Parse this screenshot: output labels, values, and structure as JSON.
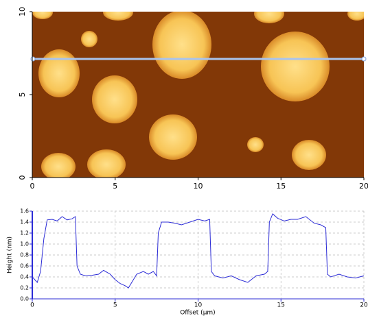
{
  "chart_data": [
    {
      "type": "image",
      "xlim": [
        0,
        20
      ],
      "ylim": [
        0,
        10
      ],
      "xticks": [
        0,
        5,
        10,
        15,
        20
      ],
      "yticks": [
        0,
        5,
        10
      ]
    },
    {
      "type": "line",
      "xlabel": "Offset (µm)",
      "ylabel": "Height (nm)",
      "x": [
        0,
        0.3,
        0.5,
        0.7,
        0.9,
        1.2,
        1.5,
        1.8,
        2.1,
        2.4,
        2.6,
        2.7,
        2.9,
        3.2,
        3.6,
        4.0,
        4.3,
        4.7,
        5.0,
        5.3,
        5.6,
        5.8,
        6.0,
        6.3,
        6.7,
        7.0,
        7.3,
        7.5,
        7.6,
        7.8,
        8.2,
        8.6,
        9.0,
        9.5,
        10.0,
        10.4,
        10.7,
        10.8,
        11.0,
        11.5,
        12.0,
        12.5,
        13.0,
        13.5,
        14.0,
        14.2,
        14.3,
        14.5,
        14.8,
        15.2,
        15.6,
        16.0,
        16.5,
        17.0,
        17.4,
        17.7,
        17.8,
        18.0,
        18.5,
        19.0,
        19.5,
        20.0
      ],
      "series": [
        {
          "color": "#2b2bd6",
          "values": [
            0.4,
            0.3,
            0.5,
            1.1,
            1.44,
            1.45,
            1.42,
            1.5,
            1.44,
            1.46,
            1.5,
            0.6,
            0.45,
            0.42,
            0.43,
            0.45,
            0.52,
            0.45,
            0.35,
            0.28,
            0.24,
            0.2,
            0.3,
            0.45,
            0.5,
            0.45,
            0.5,
            0.42,
            1.2,
            1.4,
            1.4,
            1.38,
            1.35,
            1.4,
            1.45,
            1.42,
            1.45,
            0.5,
            0.42,
            0.38,
            0.42,
            0.35,
            0.3,
            0.42,
            0.45,
            0.5,
            1.4,
            1.55,
            1.47,
            1.42,
            1.45,
            1.45,
            1.5,
            1.38,
            1.35,
            1.3,
            0.45,
            0.4,
            0.45,
            0.4,
            0.38,
            0.42
          ]
        }
      ],
      "xlim": [
        0,
        20
      ],
      "ylim": [
        0,
        1.6
      ],
      "xticks": [
        0,
        5,
        10,
        15,
        20
      ],
      "yticks": [
        {
          "value": 0,
          "label": "0.0"
        },
        0.2,
        0.4,
        0.6,
        0.8,
        {
          "value": 1,
          "label": "1.0"
        },
        1.2,
        1.4,
        1.6
      ],
      "grid": true
    }
  ]
}
